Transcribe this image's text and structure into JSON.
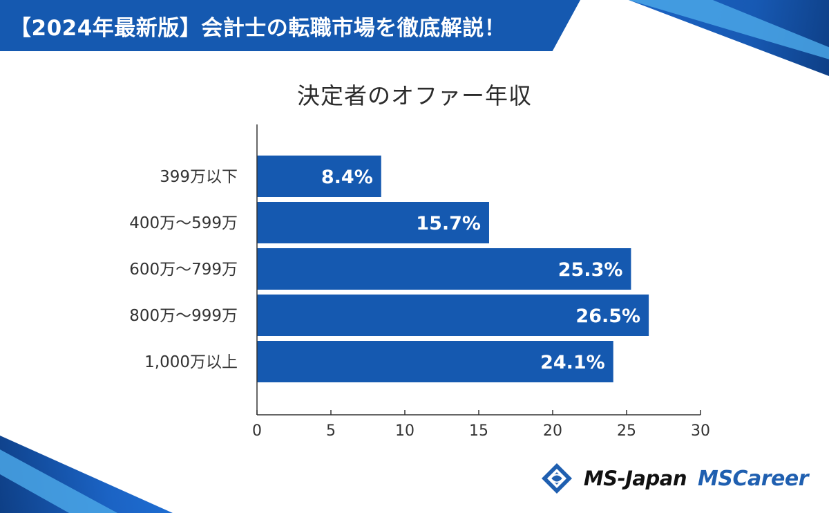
{
  "banner": {
    "title": "【2024年最新版】会計士の転職市場を徹底解説！"
  },
  "logos": {
    "ms_japan": "MS-Japan",
    "ms_career": "MSCareer",
    "icon": "ms-japan-diamond-icon"
  },
  "colors": {
    "bar": "#1559b0",
    "banner": "#1559b0",
    "axis": "#333333"
  },
  "chart_data": {
    "type": "bar",
    "orientation": "horizontal",
    "title": "決定者のオファー年収",
    "categories": [
      "399万以下",
      "400万～599万",
      "600万～799万",
      "800万～999万",
      "1,000万以上"
    ],
    "values": [
      8.4,
      15.7,
      25.3,
      26.5,
      24.1
    ],
    "value_labels": [
      "8.4%",
      "15.7%",
      "25.3%",
      "26.5%",
      "24.1%"
    ],
    "x_ticks": [
      0,
      5,
      10,
      15,
      20,
      25,
      30
    ],
    "xlim": [
      0,
      30
    ],
    "grid": false,
    "legend": "none"
  }
}
